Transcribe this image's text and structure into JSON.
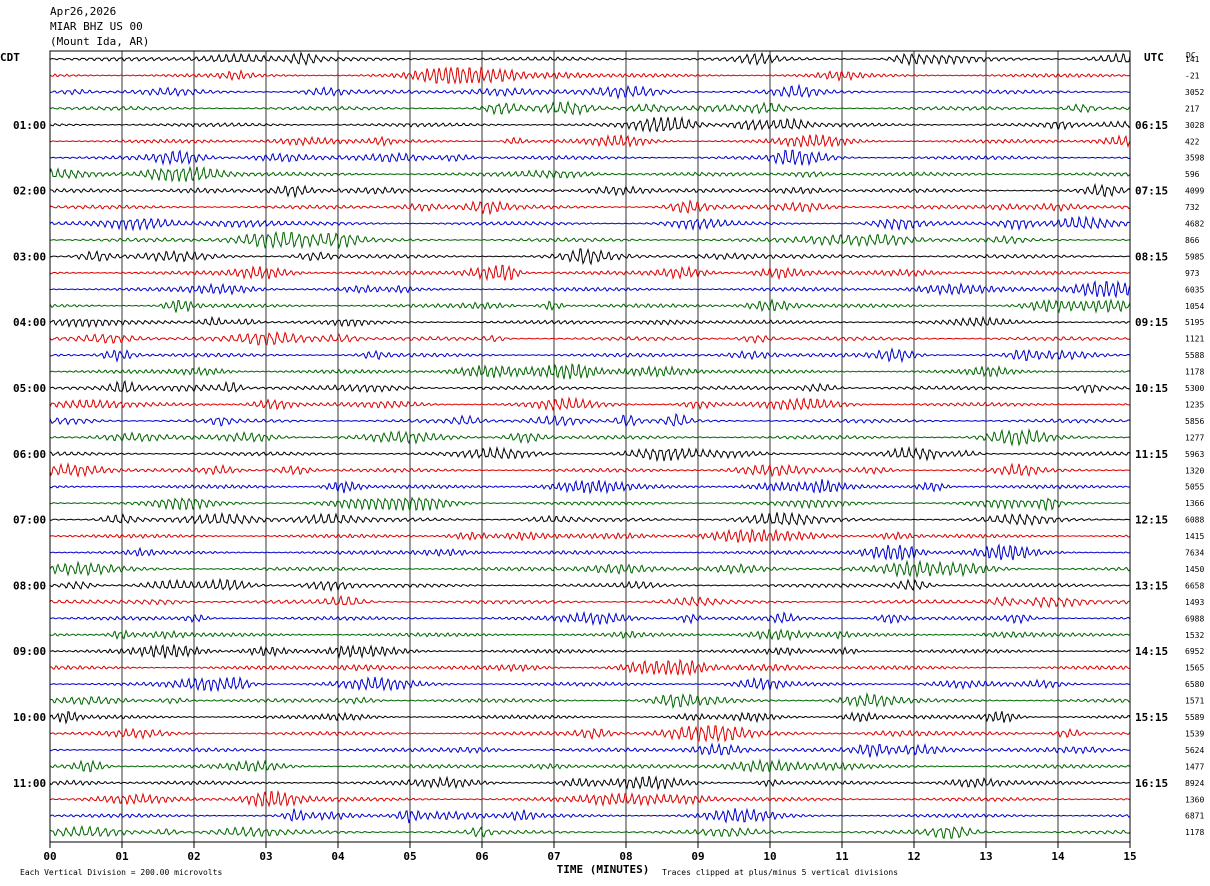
{
  "header": {
    "date": "Apr26,2026",
    "station": "MIAR BHZ US 00",
    "location": "(Mount Ida, AR)"
  },
  "chart_data": {
    "type": "line",
    "title": "MIAR BHZ US 00",
    "xlabel": "TIME (MINUTES)",
    "left_axis_title": "CDT",
    "right_axis_title": "UTC",
    "dc_title": "DC",
    "xlim": [
      0,
      15
    ],
    "x_ticks": [
      "00",
      "01",
      "02",
      "03",
      "04",
      "05",
      "06",
      "07",
      "08",
      "09",
      "10",
      "11",
      "12",
      "13",
      "14",
      "15"
    ],
    "grid": true,
    "left_hour_labels": [
      "01:00",
      "02:00",
      "03:00",
      "04:00",
      "05:00",
      "06:00",
      "07:00",
      "08:00",
      "09:00",
      "10:00",
      "11:00"
    ],
    "right_hour_labels": [
      "06:15",
      "07:15",
      "08:15",
      "09:15",
      "10:15",
      "11:15",
      "12:15",
      "13:15",
      "14:15",
      "15:15",
      "16:15"
    ],
    "trace_colors": [
      "#000000",
      "#dd0000",
      "#0000cc",
      "#006600"
    ],
    "trace_count": 48,
    "dc_offsets": [
      "141",
      "-21",
      "3052",
      "217",
      "3028",
      "422",
      "3598",
      "596",
      "4099",
      "732",
      "4682",
      "866",
      "5985",
      "973",
      "6035",
      "1054",
      "5195",
      "1121",
      "5588",
      "1178",
      "5300",
      "1235",
      "5856",
      "1277",
      "5963",
      "1320",
      "5055",
      "1366",
      "6088",
      "1415",
      "7634",
      "1450",
      "6658",
      "1493",
      "6988",
      "1532",
      "6952",
      "1565",
      "6580",
      "1571",
      "5589",
      "1539",
      "5624",
      "1477",
      "8924",
      "1360",
      "6871",
      "1178"
    ],
    "footer": {
      "scale_note": "Each Vertical Division =  200.00 microvolts",
      "clip_note": "Traces clipped at plus/minus 5 vertical divisions"
    }
  }
}
